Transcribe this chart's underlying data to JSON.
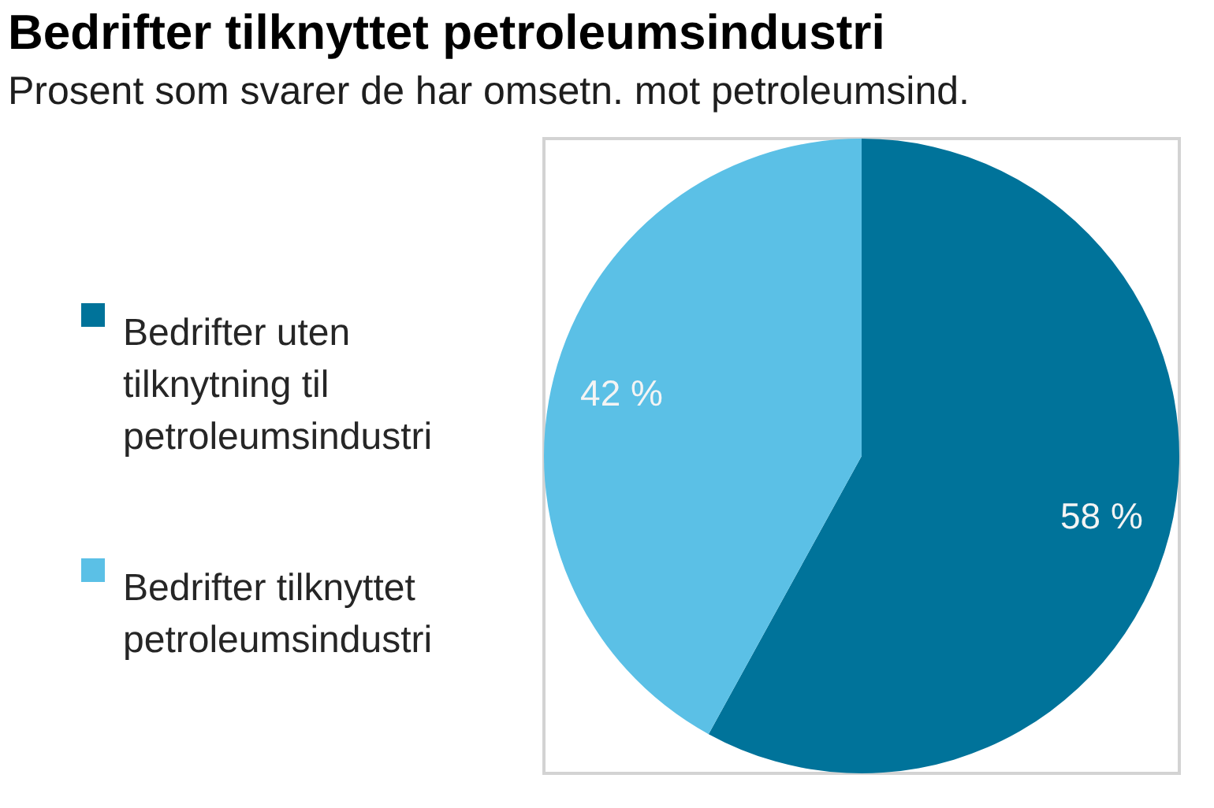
{
  "chart_data": {
    "type": "pie",
    "title": "Bedrifter tilknyttet petroleumsindustri",
    "subtitle": "Prosent som svarer de har omsetn. mot petroleumsind.",
    "categories": [
      "Bedrifter uten tilknytning til petroleumsindustri",
      "Bedrifter tilknyttet petroleumsindustri"
    ],
    "values": [
      58,
      42
    ],
    "colors": [
      "#00739a",
      "#5bc0e6"
    ],
    "value_labels": [
      "58 %",
      "42 %"
    ],
    "legend": "left"
  }
}
